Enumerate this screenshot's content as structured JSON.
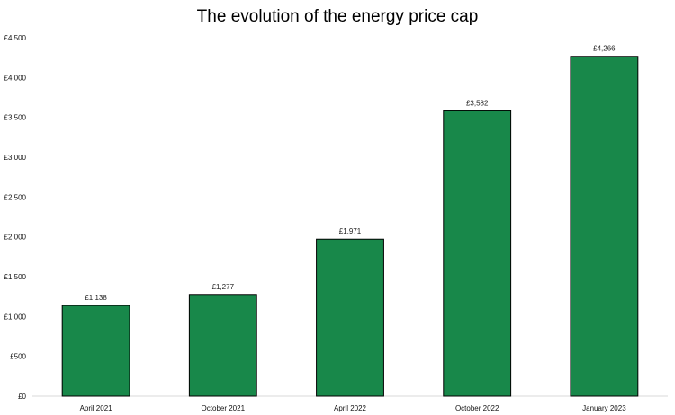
{
  "chart_data": {
    "type": "bar",
    "title": "The evolution of the energy price cap",
    "categories": [
      "April 2021",
      "October 2021",
      "April 2022",
      "October 2022",
      "January 2023"
    ],
    "values": [
      1138,
      1277,
      1971,
      3582,
      4266
    ],
    "data_labels": [
      "£1,138",
      "£1,277",
      "£1,971",
      "£3,582",
      "£4,266"
    ],
    "ylim": [
      0,
      4500
    ],
    "yticks": [
      0,
      500,
      1000,
      1500,
      2000,
      2500,
      3000,
      3500,
      4000,
      4500
    ],
    "ytick_labels": [
      "£0",
      "£500",
      "£1,000",
      "£1,500",
      "£2,000",
      "£2,500",
      "£3,000",
      "£3,500",
      "£4,000",
      "£4,500"
    ],
    "xlabel": "",
    "ylabel": "",
    "grid": false,
    "bar_color": "#18884a",
    "bar_edge_color": "#000000"
  }
}
